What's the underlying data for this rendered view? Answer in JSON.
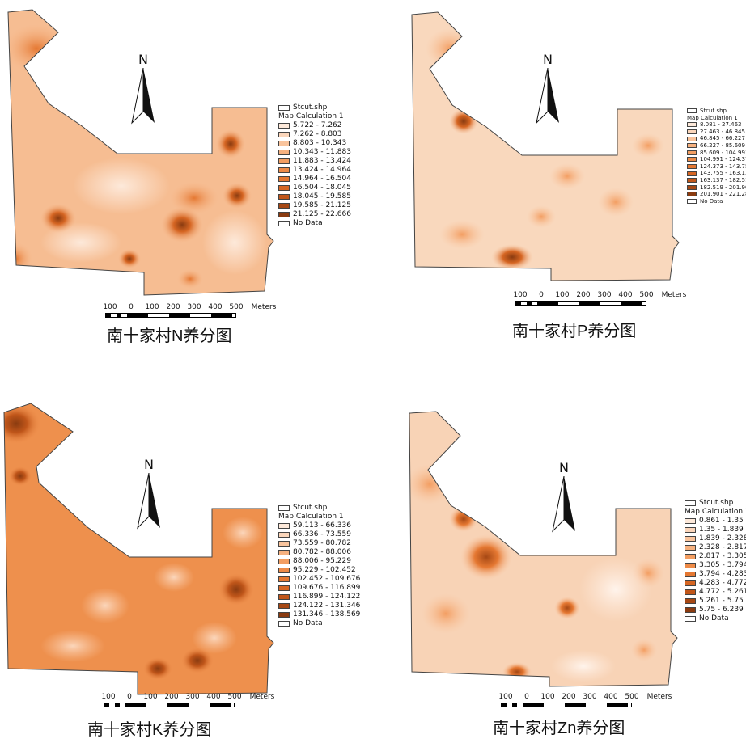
{
  "north_letter": "N",
  "scale": {
    "ticks": [
      "100",
      "0",
      "100",
      "200",
      "300",
      "400",
      "500"
    ],
    "unit": "Meters"
  },
  "maps": [
    {
      "id": "n",
      "caption_prefix": "南十家村",
      "caption_element": "N",
      "caption_suffix": "养分图",
      "legend_layer": "Stcut.shp",
      "legend_title": "Map Calculation 1",
      "classes": [
        "5.722 - 7.262",
        "7.262 - 8.803",
        "8.803 - 10.343",
        "10.343 - 11.883",
        "11.883 - 13.424",
        "13.424 - 14.964",
        "14.964 - 16.504",
        "16.504 - 18.045",
        "18.045 - 19.585",
        "19.585 - 21.125",
        "21.125 - 22.666"
      ],
      "no_data": "No Data",
      "base_color": "#f6c29a"
    },
    {
      "id": "p",
      "caption_prefix": "南十家村",
      "caption_element": "P",
      "caption_suffix": "养分图",
      "legend_layer": "Stcut.shp",
      "legend_title": "Map Calculation 1",
      "classes": [
        "8.081 - 27.463",
        "27.463 - 46.845",
        "46.845 - 66.227",
        "66.227 - 85.609",
        "85.609 - 104.991",
        "104.991 - 124.373",
        "124.373 - 143.755",
        "143.755 - 163.137",
        "163.137 - 182.519",
        "182.519 - 201.901",
        "201.901 - 221.283"
      ],
      "no_data": "No Data",
      "base_color": "#f9dcc4"
    },
    {
      "id": "k",
      "caption_prefix": "南十家村",
      "caption_element": "K",
      "caption_suffix": "养分图",
      "legend_layer": "Stcut.shp",
      "legend_title": "Map Calculation 1",
      "classes": [
        "59.113 - 66.336",
        "66.336 - 73.559",
        "73.559 - 80.782",
        "80.782 - 88.006",
        "88.006 - 95.229",
        "95.229 - 102.452",
        "102.452 - 109.676",
        "109.676 - 116.899",
        "116.899 - 124.122",
        "124.122 - 131.346",
        "131.346 - 138.569"
      ],
      "no_data": "No Data",
      "base_color": "#ee9a55"
    },
    {
      "id": "zn",
      "caption_prefix": "南十家村",
      "caption_element": "Zn",
      "caption_suffix": "养分图",
      "legend_layer": "Stcut.shp",
      "legend_title": "Map Calculation 1",
      "classes": [
        "0.861 - 1.35",
        "1.35 - 1.839",
        "1.839 - 2.328",
        "2.328 - 2.817",
        "2.817 - 3.305",
        "3.305 - 3.794",
        "3.794 - 4.283",
        "4.283 - 4.772",
        "4.772 - 5.261",
        "5.261 - 5.75",
        "5.75 - 6.239"
      ],
      "no_data": "No Data",
      "base_color": "#f8d8bf"
    }
  ],
  "ramp": [
    "#fde9da",
    "#fbd6bb",
    "#f9c49d",
    "#f6b17f",
    "#f39e62",
    "#ee8b48",
    "#e57832",
    "#d66623",
    "#c0561a",
    "#a64814",
    "#8a3b10"
  ]
}
